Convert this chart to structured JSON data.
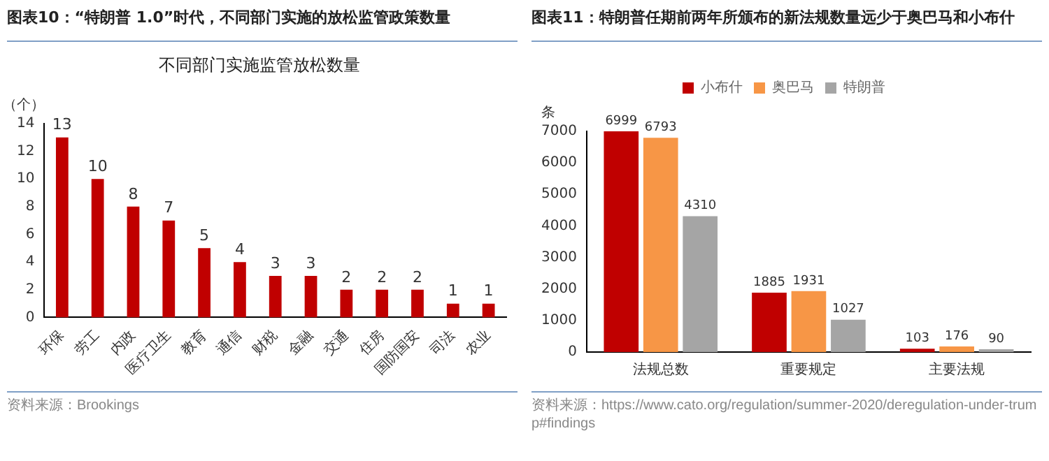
{
  "chart_data": [
    {
      "type": "bar",
      "title": "图表10：“特朗普 1.0”时代，不同部门实施的放松监管政策数量",
      "subtitle": "不同部门实施监管放松数量",
      "ylabel": "（个）",
      "categories": [
        "环保",
        "劳工",
        "内政",
        "医疗卫生",
        "教育",
        "通信",
        "财税",
        "金融",
        "交通",
        "住房",
        "国防国安",
        "司法",
        "农业"
      ],
      "values": [
        13,
        10,
        8,
        7,
        5,
        4,
        3,
        3,
        2,
        2,
        2,
        1,
        1
      ],
      "color": "#c00000",
      "ylim": [
        0,
        14
      ],
      "yticks": [
        0,
        2,
        4,
        6,
        8,
        10,
        12,
        14
      ],
      "grid": false,
      "legend": false,
      "data_labels": true,
      "annotations": [
        "资料来源：Brookings"
      ]
    },
    {
      "type": "bar",
      "title": "图表11：特朗普任期前两年所颁布的新法规数量远少于奥巴马和小布什",
      "ylabel": "条",
      "categories": [
        "法规总数",
        "重要规定",
        "主要法规"
      ],
      "series": [
        {
          "name": "小布什",
          "color": "#c00000",
          "values": [
            6999,
            1885,
            103
          ]
        },
        {
          "name": "奥巴马",
          "color": "#f79646",
          "values": [
            6793,
            1931,
            176
          ]
        },
        {
          "name": "特朗普",
          "color": "#a5a5a5",
          "values": [
            4310,
            1027,
            90
          ]
        }
      ],
      "ylim": [
        0,
        7000
      ],
      "yticks": [
        0,
        1000,
        2000,
        3000,
        4000,
        5000,
        6000,
        7000
      ],
      "grid": false,
      "legend": "top",
      "data_labels": true,
      "annotations": [
        "资料来源：https://www.cato.org/regulation/summer-2020/deregulation-under-trump#findings"
      ]
    }
  ]
}
